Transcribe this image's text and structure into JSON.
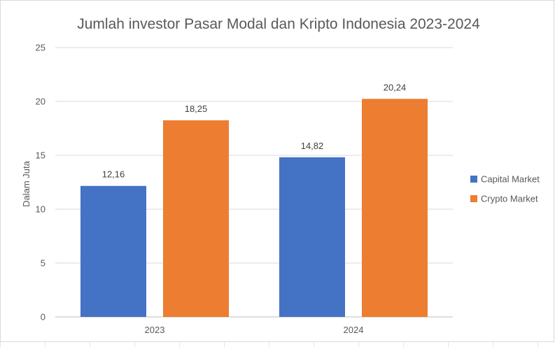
{
  "chart_data": {
    "type": "bar",
    "title": "Jumlah investor Pasar Modal dan Kripto Indonesia 2023-2024",
    "ylabel": "Dalam Juta",
    "xlabel": "",
    "categories": [
      "2023",
      "2024"
    ],
    "series": [
      {
        "name": "Capital Market",
        "values": [
          12.16,
          14.82
        ],
        "labels": [
          "12,16",
          "14,82"
        ],
        "color": "#4472c4"
      },
      {
        "name": "Crypto Market",
        "values": [
          18.25,
          20.24
        ],
        "labels": [
          "18,25",
          "20,24"
        ],
        "color": "#ed7d31"
      }
    ],
    "ylim": [
      0,
      25
    ],
    "yticks": [
      0,
      5,
      10,
      15,
      20,
      25
    ],
    "grid": true,
    "legend": "right"
  }
}
